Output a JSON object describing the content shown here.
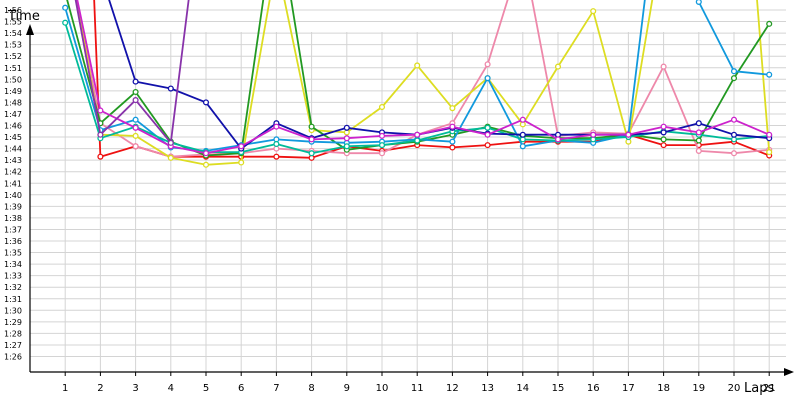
{
  "chart_data": {
    "type": "line",
    "title": "",
    "xlabel": "Laps",
    "ylabel": "Time",
    "xlim": [
      0,
      21.4
    ],
    "ylim": [
      1.3,
      1.96
    ],
    "grid": true,
    "legend": "none",
    "x_ticks": [
      "1",
      "2",
      "3",
      "4",
      "5",
      "6",
      "7",
      "8",
      "9",
      "10",
      "11",
      "12",
      "13",
      "14",
      "15",
      "16",
      "17",
      "18",
      "19",
      "20",
      "21"
    ],
    "y_ticks": [
      "1:26",
      "1:27",
      "1:28",
      "1:29",
      "1:30",
      "1:31",
      "1:32",
      "1:33",
      "1:34",
      "1:35",
      "1:36",
      "1:37",
      "1:38",
      "1:39",
      "1:40",
      "1:41",
      "1:42",
      "1:43",
      "1:44",
      "1:45",
      "1:46",
      "1:47",
      "1:48",
      "1:49",
      "1:50",
      "1:51",
      "1:52",
      "1:53",
      "1:54",
      "1:55",
      "1:56"
    ],
    "series": [
      {
        "color": "#ee1111",
        "x": [
          1,
          2,
          3,
          4,
          5,
          6,
          7,
          8,
          9,
          10,
          11,
          12,
          13,
          14,
          15,
          16,
          17,
          18,
          19,
          20,
          21
        ],
        "values": [
          2.2,
          1.433,
          1.442,
          1.433,
          1.433,
          1.433,
          1.433,
          1.432,
          1.442,
          1.438,
          1.443,
          1.441,
          1.443,
          1.446,
          1.446,
          1.446,
          1.452,
          1.443,
          1.443,
          1.446,
          1.434
        ]
      },
      {
        "color": "#ee88aa",
        "x": [
          1,
          2,
          3,
          4,
          5,
          6,
          7,
          8,
          9,
          10,
          11,
          12,
          13,
          14,
          15,
          16,
          17,
          18,
          19,
          20,
          21
        ],
        "values": [
          1.621,
          1.462,
          1.442,
          1.433,
          1.435,
          1.436,
          1.44,
          1.438,
          1.436,
          1.436,
          1.452,
          1.462,
          1.513,
          1.611,
          1.451,
          1.454,
          1.453,
          1.511,
          1.438,
          1.436,
          1.439
        ]
      },
      {
        "color": "#dddd22",
        "x": [
          1,
          2,
          3,
          4,
          5,
          6,
          7,
          8,
          9,
          10,
          11,
          12,
          13,
          14,
          15,
          16,
          17,
          18,
          19,
          20,
          21
        ],
        "values": [
          1.628,
          1.452,
          1.451,
          1.432,
          1.426,
          1.428,
          1.602,
          1.456,
          1.454,
          1.476,
          1.512,
          1.475,
          1.501,
          1.461,
          1.511,
          1.559,
          1.446,
          1.627,
          1.685,
          1.818,
          1.437
        ]
      },
      {
        "color": "#229922",
        "x": [
          1,
          2,
          3,
          4,
          5,
          6,
          7,
          8,
          9,
          10,
          11,
          12,
          13,
          14,
          15,
          16,
          17,
          18,
          19,
          20,
          21
        ],
        "values": [
          1.575,
          1.462,
          1.489,
          1.446,
          1.434,
          1.436,
          1.648,
          1.459,
          1.439,
          1.443,
          1.446,
          1.452,
          1.459,
          1.451,
          1.449,
          1.449,
          1.452,
          1.448,
          1.447,
          1.501,
          1.548
        ]
      },
      {
        "color": "#1199dd",
        "x": [
          1,
          2,
          3,
          4,
          5,
          6,
          7,
          8,
          9,
          10,
          11,
          12,
          13,
          14,
          15,
          16,
          17,
          18,
          19,
          20,
          21
        ],
        "values": [
          1.562,
          1.456,
          1.465,
          1.441,
          1.438,
          1.443,
          1.448,
          1.446,
          1.445,
          1.446,
          1.448,
          1.446,
          1.501,
          1.442,
          1.447,
          1.445,
          1.452,
          1.702,
          1.567,
          1.507,
          1.504
        ]
      },
      {
        "color": "#00bb99",
        "x": [
          1,
          2,
          3,
          4,
          5,
          6,
          7,
          8,
          9,
          10,
          11,
          12,
          13,
          14,
          15,
          16,
          17,
          18,
          19,
          20,
          21
        ],
        "values": [
          1.549,
          1.449,
          1.459,
          1.445,
          1.437,
          1.437,
          1.444,
          1.436,
          1.442,
          1.443,
          1.447,
          1.455,
          1.458,
          1.448,
          1.447,
          1.448,
          1.45,
          1.455,
          1.452,
          1.448,
          1.451
        ]
      },
      {
        "color": "#1111aa",
        "x": [
          1,
          2,
          3,
          4,
          5,
          6,
          7,
          8,
          9,
          10,
          11,
          12,
          13,
          14,
          15,
          16,
          17,
          18,
          19,
          20,
          21
        ],
        "values": [
          1.622,
          1.592,
          1.498,
          1.492,
          1.48,
          1.44,
          1.462,
          1.449,
          1.458,
          1.454,
          1.452,
          1.458,
          1.453,
          1.452,
          1.452,
          1.452,
          1.452,
          1.454,
          1.462,
          1.452,
          1.449
        ]
      },
      {
        "color": "#cc22cc",
        "x": [
          1,
          2,
          3,
          4,
          5,
          6,
          7,
          8,
          9,
          10,
          11,
          12,
          13,
          14,
          15,
          16,
          17,
          18,
          19,
          20,
          21
        ],
        "values": [
          1.619,
          1.473,
          1.458,
          1.442,
          1.436,
          1.442,
          1.459,
          1.448,
          1.449,
          1.451,
          1.452,
          1.459,
          1.452,
          1.465,
          1.448,
          1.452,
          1.452,
          1.459,
          1.454,
          1.465,
          1.452
        ]
      },
      {
        "color": "#8833aa",
        "x": [
          1,
          2,
          3,
          4,
          5
        ],
        "values": [
          1.618,
          1.452,
          1.482,
          1.445,
          1.689
        ]
      }
    ]
  }
}
